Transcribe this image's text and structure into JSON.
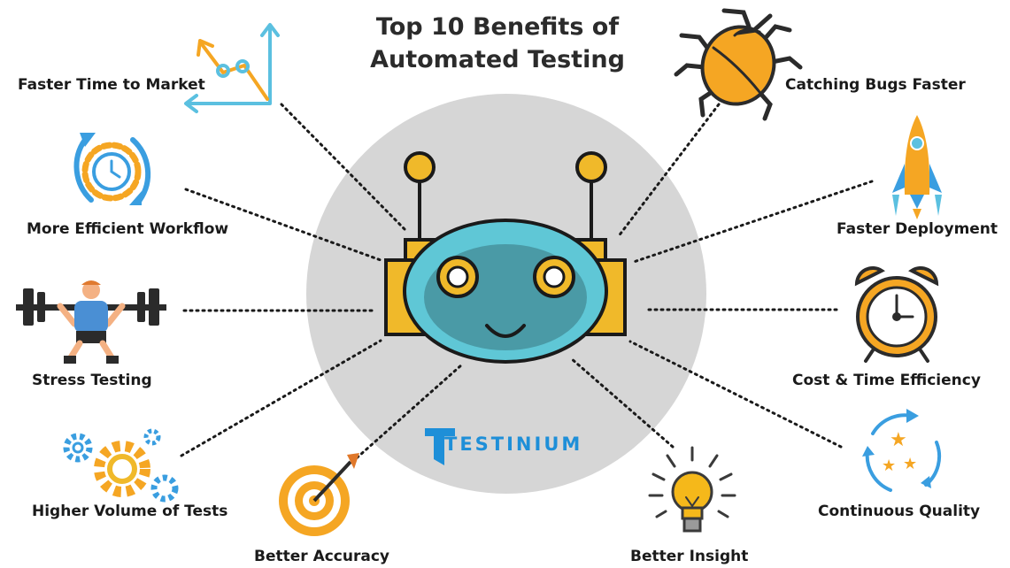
{
  "title": {
    "line1": "Top 10 Benefits of",
    "line2": "Automated Testing"
  },
  "brand": {
    "name": "TESTINIUM",
    "color": "#1e8fd8"
  },
  "colors": {
    "circle": "#d6d6d6",
    "robot_body": "#f0b92a",
    "robot_face": "#5fc7d6",
    "robot_visor": "#4a9aa6",
    "outline": "#1a1a1a",
    "accent_orange": "#f5a623",
    "accent_blue": "#3a9ee0"
  },
  "benefits": [
    {
      "label": "Faster Time to Market",
      "icon": "line-chart-icon"
    },
    {
      "label": "More Efficient Workflow",
      "icon": "clock-gear-icon"
    },
    {
      "label": "Stress Testing",
      "icon": "weightlifter-icon"
    },
    {
      "label": "Higher Volume of Tests",
      "icon": "gears-icon"
    },
    {
      "label": "Better Accuracy",
      "icon": "target-icon"
    },
    {
      "label": "Better Insight",
      "icon": "lightbulb-icon"
    },
    {
      "label": "Continuous Quality",
      "icon": "recycle-stars-icon"
    },
    {
      "label": "Cost & Time Efficiency",
      "icon": "alarm-clock-icon"
    },
    {
      "label": "Faster Deployment",
      "icon": "rocket-icon"
    },
    {
      "label": "Catching Bugs Faster",
      "icon": "bug-icon"
    }
  ]
}
